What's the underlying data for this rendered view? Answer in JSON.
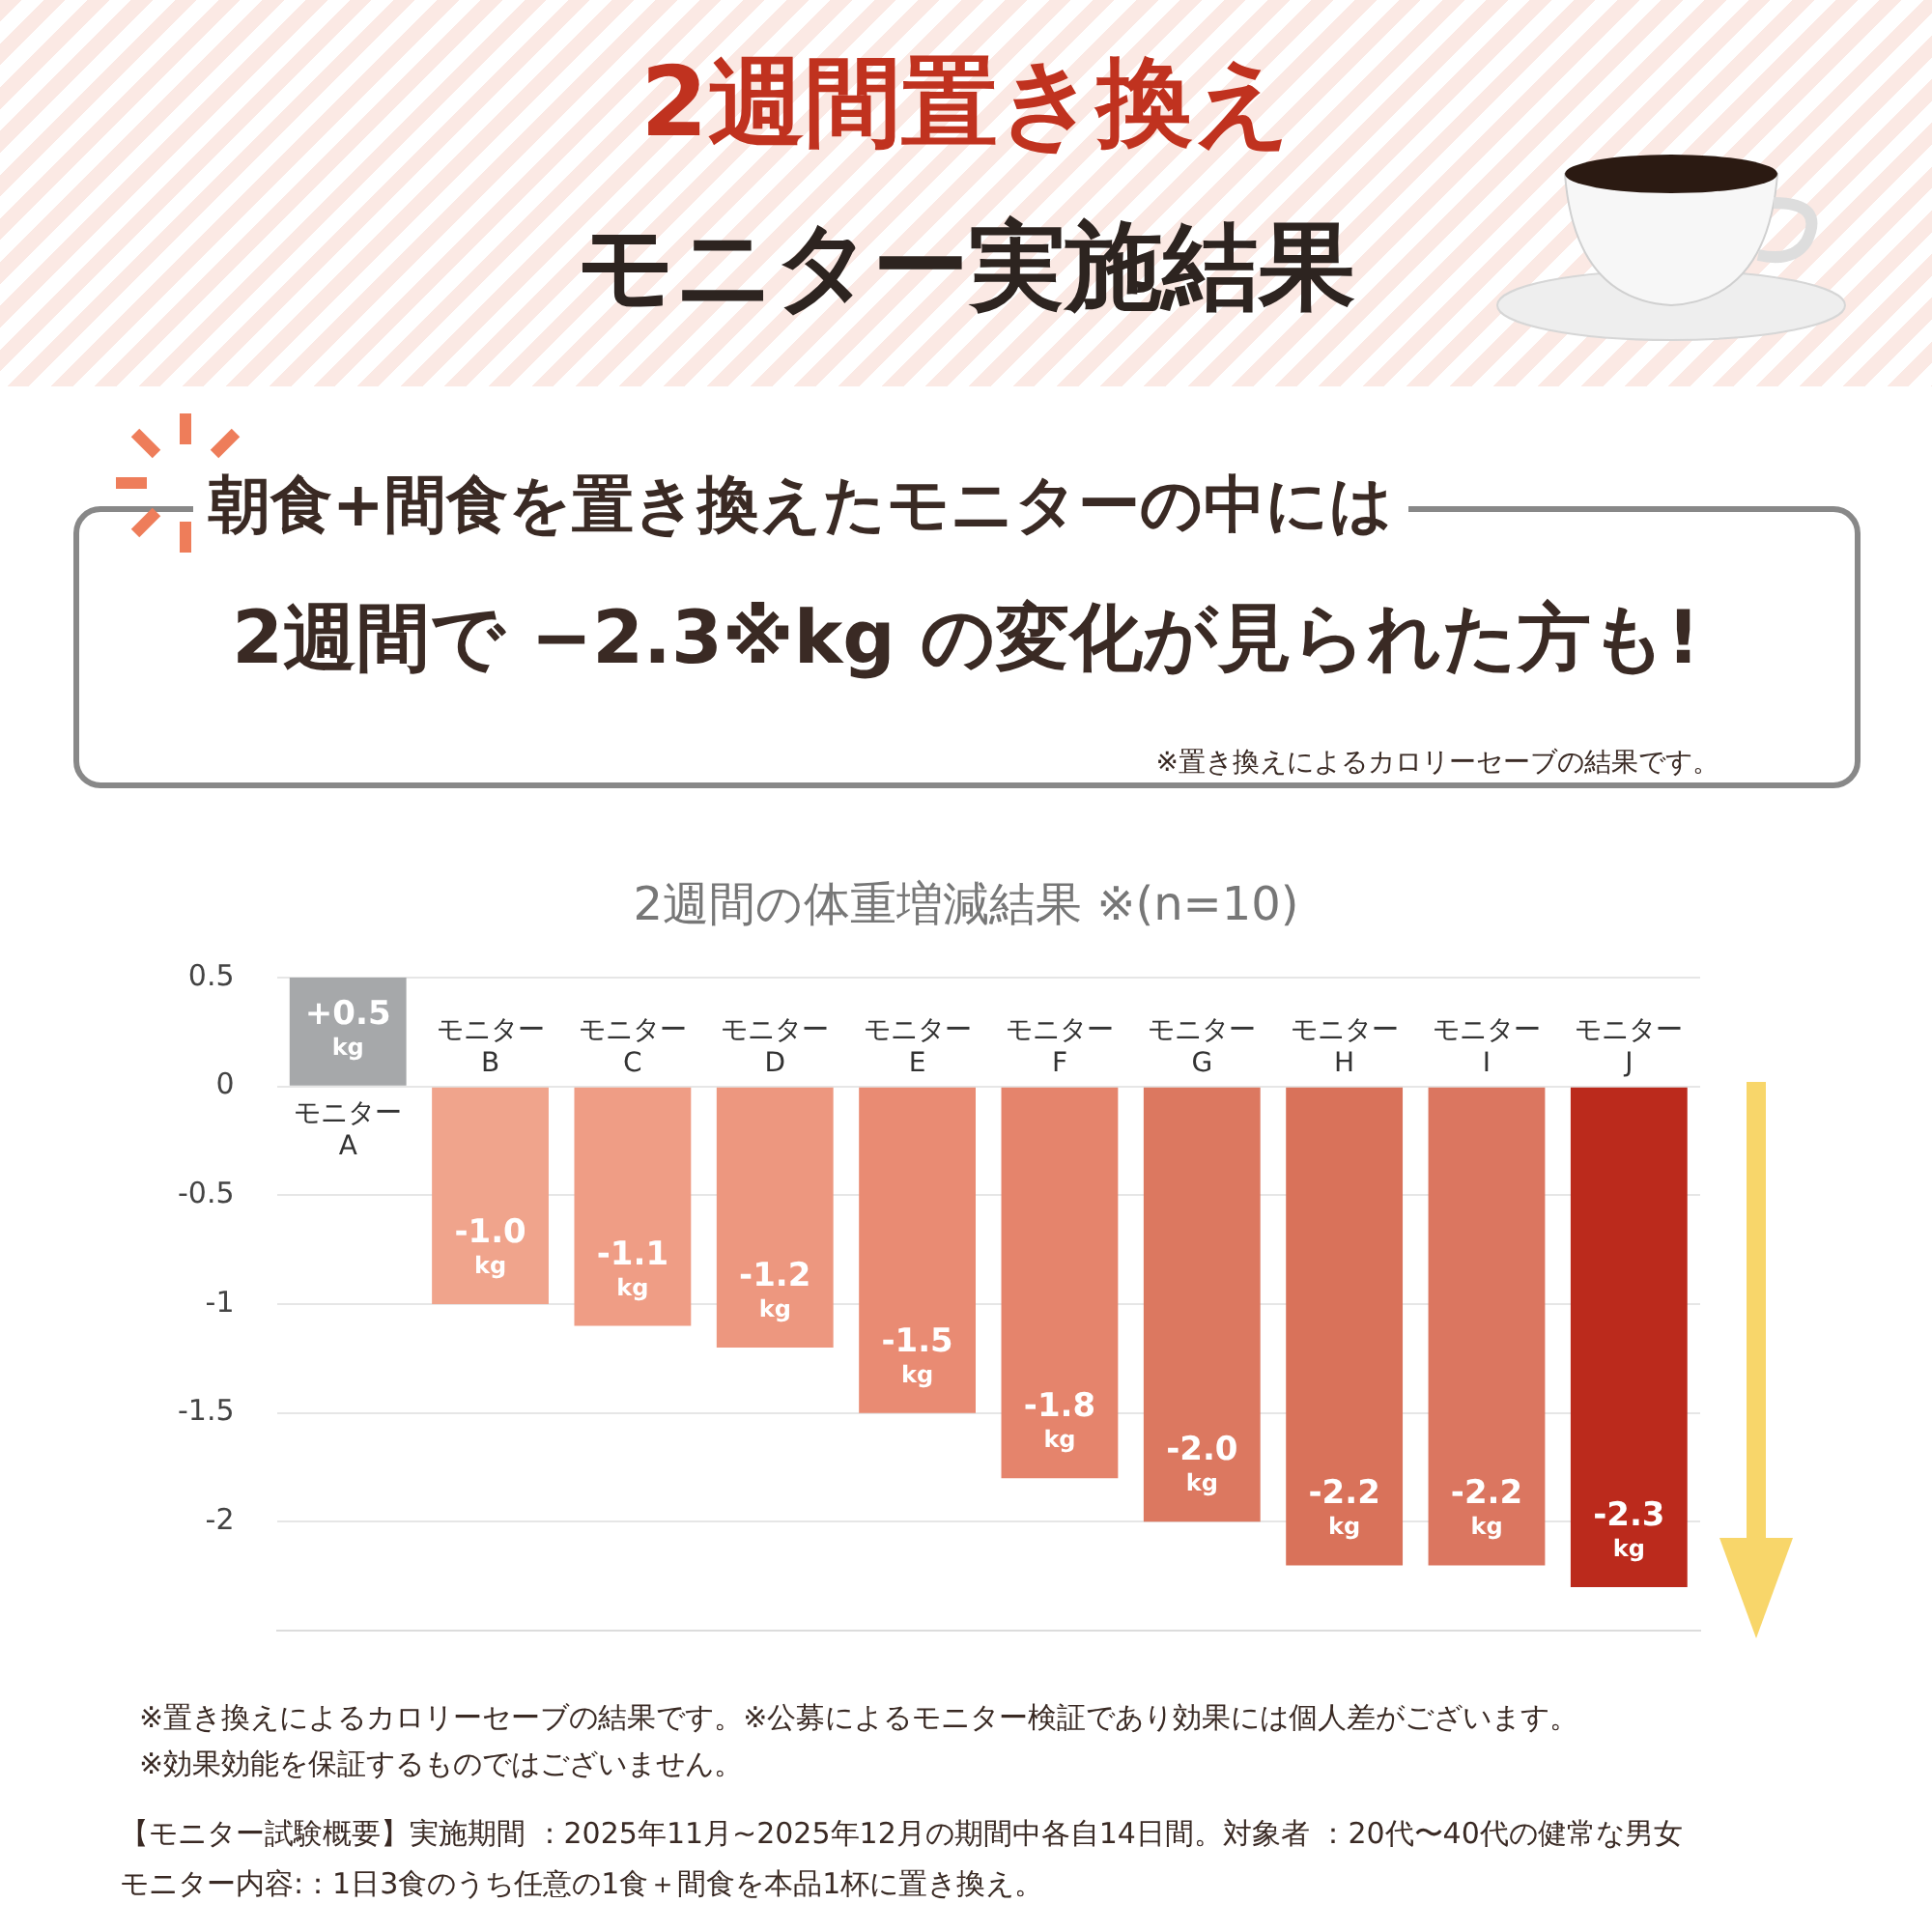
{
  "chart_data": {
    "type": "bar",
    "title": "2週間置き換え",
    "subtitle": "モニター実施結果",
    "categories": [
      "モニター A",
      "モニター B",
      "モニター C",
      "モニター D",
      "モニター E",
      "モニター F",
      "モニター G",
      "モニター H",
      "モニター I",
      "モニター J"
    ],
    "values": [
      0.5,
      -1.0,
      -1.1,
      -1.2,
      -1.5,
      -1.8,
      -2.0,
      -2.2,
      -2.2,
      -2.3
    ],
    "colors": [
      "#a6a8aa",
      "#f0a48c",
      "#ef9d85",
      "#ed977f",
      "#e98b73",
      "#e5846c",
      "#dc7860",
      "#d9725a",
      "#db7660",
      "#bb2a1c"
    ],
    "value_labels": [
      "+0.5 kg",
      "-1.0 kg",
      "-1.1 kg",
      "-1.2 kg",
      "-1.5 kg",
      "-1.8 kg",
      "-2.0 kg",
      "-2.2 kg",
      "-2.2 kg",
      "-2.3 kg"
    ],
    "ylim": [
      -2.5,
      0.5
    ],
    "yticks": [
      0.5,
      0,
      -0.5,
      -1,
      -1.5,
      -2
    ],
    "grid": "y",
    "legend": false,
    "annotations": [
      "朝食+間食を置き換えたモニターの中には",
      "2週間で −2.3※kg の変化が見られた方も!",
      "※置き換えによるカロリーセーブの結果です。",
      "2週間の体重増減結果 ※(n=10)",
      "※置き換えによるカロリーセーブの結果です。※公募によるモニター検証であり効果には個人差がございます。",
      "※効果効能を保証するものではございません。",
      "【モニター試験概要】実施期間 ：2025年11月~2025年12月の期間中各自14日間。対象者 ：20代〜40代の健常な男女",
      "モニター内容:：1日3食のうち任意の1食＋間食を本品1杯に置き換え。"
    ]
  }
}
